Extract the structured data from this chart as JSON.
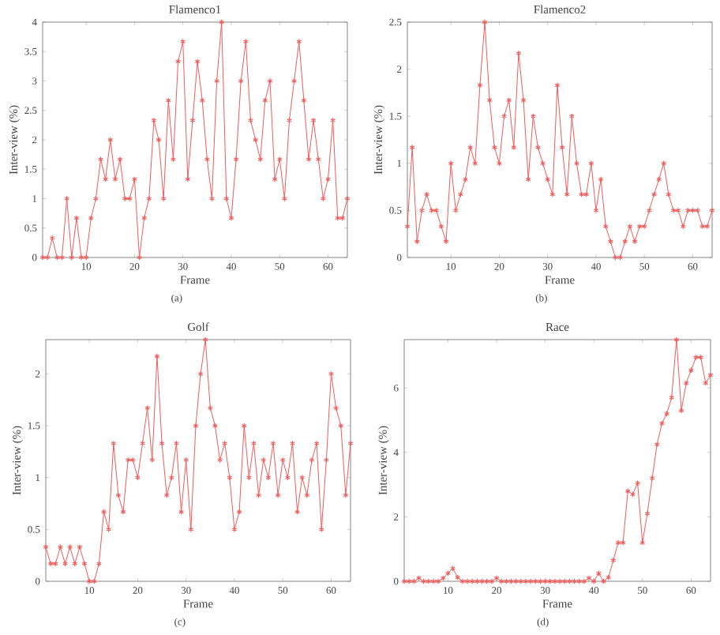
{
  "chart_data": [
    {
      "type": "line",
      "title": "Flamenco1",
      "xlabel": "Frame",
      "ylabel": "Inter-view (%)",
      "annotations": [
        "(a)"
      ],
      "marker": "cross",
      "line_style": "solid",
      "xlim": [
        1,
        64
      ],
      "xticks": [
        10,
        20,
        30,
        40,
        50,
        60
      ],
      "ylim": [
        0,
        4
      ],
      "yticks": [
        0,
        0.5,
        1,
        1.5,
        2,
        2.5,
        3,
        3.5,
        4
      ],
      "x": [
        1,
        2,
        3,
        4,
        5,
        6,
        7,
        8,
        9,
        10,
        11,
        12,
        13,
        14,
        15,
        16,
        17,
        18,
        19,
        20,
        21,
        22,
        23,
        24,
        25,
        26,
        27,
        28,
        29,
        30,
        31,
        32,
        33,
        34,
        35,
        36,
        37,
        38,
        39,
        40,
        41,
        42,
        43,
        44,
        45,
        46,
        47,
        48,
        49,
        50,
        51,
        52,
        53,
        54,
        55,
        56,
        57,
        58,
        59,
        60,
        61,
        62,
        63,
        64
      ],
      "series": [
        {
          "color": "#f05a5a",
          "values": [
            0,
            0,
            0.33,
            0,
            0,
            1,
            0,
            0.67,
            0,
            0,
            0.67,
            1,
            1.67,
            1.33,
            2,
            1.33,
            1.67,
            1,
            1,
            1.33,
            0,
            0.67,
            1,
            2.33,
            2,
            1,
            2.67,
            1.67,
            3.33,
            3.67,
            1.33,
            2.33,
            3.33,
            2.67,
            1.67,
            1,
            3,
            4,
            1,
            0.67,
            1.67,
            3,
            3.67,
            2.33,
            2,
            1.67,
            2.67,
            3,
            1.33,
            1.67,
            1,
            2.33,
            3,
            3.67,
            2.67,
            1.67,
            2.33,
            1.67,
            1,
            1.33,
            2.33,
            0.67,
            0.67,
            1
          ]
        }
      ]
    },
    {
      "type": "line",
      "title": "Flamenco2",
      "xlabel": "Frame",
      "ylabel": "Inter-view (%)",
      "annotations": [
        "(b)"
      ],
      "marker": "cross",
      "line_style": "solid",
      "xlim": [
        1,
        64
      ],
      "xticks": [
        10,
        20,
        30,
        40,
        50,
        60
      ],
      "ylim": [
        0,
        2.5
      ],
      "yticks": [
        0,
        0.5,
        1,
        1.5,
        2,
        2.5
      ],
      "x": [
        1,
        2,
        3,
        4,
        5,
        6,
        7,
        8,
        9,
        10,
        11,
        12,
        13,
        14,
        15,
        16,
        17,
        18,
        19,
        20,
        21,
        22,
        23,
        24,
        25,
        26,
        27,
        28,
        29,
        30,
        31,
        32,
        33,
        34,
        35,
        36,
        37,
        38,
        39,
        40,
        41,
        42,
        43,
        44,
        45,
        46,
        47,
        48,
        49,
        50,
        51,
        52,
        53,
        54,
        55,
        56,
        57,
        58,
        59,
        60,
        61,
        62,
        63,
        64
      ],
      "series": [
        {
          "color": "#f05a5a",
          "values": [
            0.33,
            1.17,
            0.17,
            0.5,
            0.67,
            0.5,
            0.5,
            0.33,
            0.17,
            1,
            0.5,
            0.67,
            0.83,
            1.17,
            1,
            1.83,
            2.5,
            1.67,
            1.17,
            1,
            1.5,
            1.67,
            1.17,
            2.17,
            1.67,
            0.83,
            1.5,
            1.17,
            1,
            0.83,
            0.67,
            1.83,
            1.17,
            0.67,
            1.5,
            1,
            0.67,
            0.67,
            1,
            0.5,
            0.83,
            0.33,
            0.17,
            0,
            0,
            0.17,
            0.33,
            0.17,
            0.33,
            0.33,
            0.5,
            0.67,
            0.83,
            1,
            0.67,
            0.5,
            0.5,
            0.33,
            0.5,
            0.5,
            0.5,
            0.33,
            0.33,
            0.5
          ]
        }
      ]
    },
    {
      "type": "line",
      "title": "Golf",
      "xlabel": "Frame",
      "ylabel": "Inter-view (%)",
      "annotations": [
        "(c)"
      ],
      "marker": "cross",
      "line_style": "solid",
      "xlim": [
        1,
        64
      ],
      "xticks": [
        10,
        20,
        30,
        40,
        50,
        60
      ],
      "ylim": [
        0,
        2.33
      ],
      "yticks": [
        0,
        0.5,
        1,
        1.5,
        2
      ],
      "x": [
        1,
        2,
        3,
        4,
        5,
        6,
        7,
        8,
        9,
        10,
        11,
        12,
        13,
        14,
        15,
        16,
        17,
        18,
        19,
        20,
        21,
        22,
        23,
        24,
        25,
        26,
        27,
        28,
        29,
        30,
        31,
        32,
        33,
        34,
        35,
        36,
        37,
        38,
        39,
        40,
        41,
        42,
        43,
        44,
        45,
        46,
        47,
        48,
        49,
        50,
        51,
        52,
        53,
        54,
        55,
        56,
        57,
        58,
        59,
        60,
        61,
        62,
        63,
        64
      ],
      "series": [
        {
          "color": "#f05a5a",
          "values": [
            0.33,
            0.17,
            0.17,
            0.33,
            0.17,
            0.33,
            0.17,
            0.33,
            0.17,
            0,
            0,
            0.17,
            0.67,
            0.5,
            1.33,
            0.83,
            0.67,
            1.17,
            1.17,
            1,
            1.33,
            1.67,
            1.17,
            2.17,
            1.33,
            0.83,
            1,
            1.33,
            0.67,
            1.17,
            0.5,
            1.5,
            2,
            2.33,
            1.67,
            1.5,
            1.17,
            1.33,
            1,
            0.5,
            0.67,
            1.5,
            1,
            1.33,
            0.83,
            1.17,
            1,
            1.33,
            0.83,
            1.17,
            1,
            1.33,
            0.67,
            1,
            0.83,
            1.17,
            1.33,
            0.5,
            1.17,
            2,
            1.67,
            1.5,
            0.83,
            1.33
          ]
        }
      ]
    },
    {
      "type": "line",
      "title": "Race",
      "xlabel": "Frame",
      "ylabel": "Inter-view (%)",
      "annotations": [
        "(d)"
      ],
      "marker": "cross",
      "line_style": "solid",
      "xlim": [
        1,
        64
      ],
      "xticks": [
        10,
        20,
        30,
        40,
        50,
        60
      ],
      "ylim": [
        0,
        7.5
      ],
      "yticks": [
        0,
        2,
        4,
        6
      ],
      "x": [
        1,
        2,
        3,
        4,
        5,
        6,
        7,
        8,
        9,
        10,
        11,
        12,
        13,
        14,
        15,
        16,
        17,
        18,
        19,
        20,
        21,
        22,
        23,
        24,
        25,
        26,
        27,
        28,
        29,
        30,
        31,
        32,
        33,
        34,
        35,
        36,
        37,
        38,
        39,
        40,
        41,
        42,
        43,
        44,
        45,
        46,
        47,
        48,
        49,
        50,
        51,
        52,
        53,
        54,
        55,
        56,
        57,
        58,
        59,
        60,
        61,
        62,
        63,
        64
      ],
      "series": [
        {
          "color": "#f05a5a",
          "values": [
            0,
            0,
            0,
            0.1,
            0,
            0,
            0,
            0,
            0.1,
            0.25,
            0.4,
            0.12,
            0,
            0,
            0,
            0,
            0,
            0,
            0,
            0.1,
            0,
            0,
            0,
            0,
            0,
            0,
            0,
            0,
            0,
            0,
            0,
            0,
            0,
            0,
            0,
            0,
            0,
            0,
            0.1,
            0,
            0.25,
            0,
            0.12,
            0.65,
            1.2,
            1.2,
            2.8,
            2.7,
            3.05,
            1.2,
            2.1,
            3.2,
            4.25,
            4.9,
            5.2,
            5.7,
            7.5,
            5.3,
            6.15,
            6.55,
            6.95,
            6.95,
            6.15,
            6.4
          ]
        }
      ]
    }
  ]
}
